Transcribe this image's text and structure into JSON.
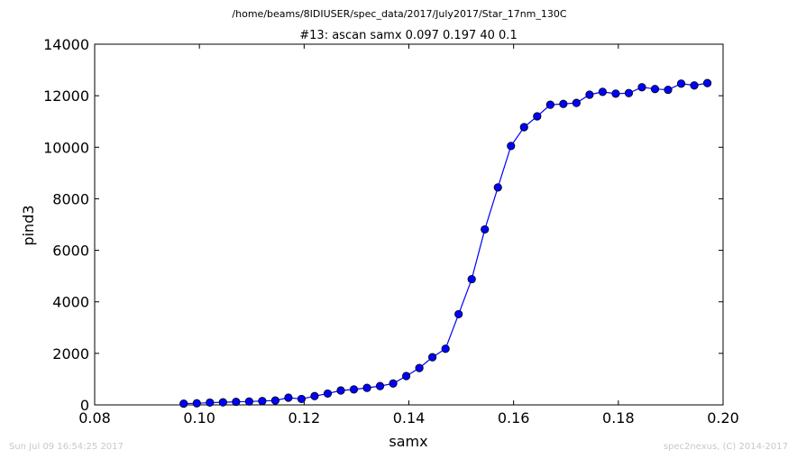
{
  "chart_data": {
    "type": "line",
    "suptitle": "/home/beams/8IDIUSER/spec_data/2017/July2017/Star_17nm_130C",
    "title": "#13: ascan  samx 0.097 0.197  40 0.1",
    "xlabel": "samx",
    "ylabel": "pind3",
    "xlim": [
      0.08,
      0.2
    ],
    "ylim": [
      0,
      14000
    ],
    "xticks": [
      "0.08",
      "0.10",
      "0.12",
      "0.14",
      "0.16",
      "0.18",
      "0.20"
    ],
    "yticks": [
      "0",
      "2000",
      "4000",
      "6000",
      "8000",
      "10000",
      "12000",
      "14000"
    ],
    "grid": false,
    "line_color": "#0000ff",
    "marker_color": "#0000ff",
    "series": [
      {
        "x": [
          0.097,
          0.0995,
          0.102,
          0.1045,
          0.107,
          0.1095,
          0.112,
          0.1145,
          0.117,
          0.1195,
          0.122,
          0.1245,
          0.127,
          0.1295,
          0.132,
          0.1345,
          0.137,
          0.1395,
          0.142,
          0.1445,
          0.147,
          0.1495,
          0.152,
          0.1545,
          0.157,
          0.1595,
          0.162,
          0.1645,
          0.167,
          0.1695,
          0.172,
          0.1745,
          0.177,
          0.1795,
          0.182,
          0.1845,
          0.187,
          0.1895,
          0.192,
          0.1945,
          0.197
        ],
        "y": [
          50,
          60,
          90,
          100,
          120,
          130,
          150,
          170,
          280,
          230,
          340,
          440,
          560,
          600,
          660,
          730,
          830,
          1120,
          1430,
          1850,
          2180,
          3520,
          4880,
          6810,
          8440,
          10050,
          10780,
          11200,
          11650,
          11680,
          11720,
          12040,
          12150,
          12080,
          12100,
          12330,
          12260,
          12230,
          12470,
          12400,
          12490
        ]
      }
    ]
  },
  "footer": {
    "timestamp": "Sun Jul 09 16:54:25 2017",
    "credit": "spec2nexus, (C) 2014-2017"
  }
}
